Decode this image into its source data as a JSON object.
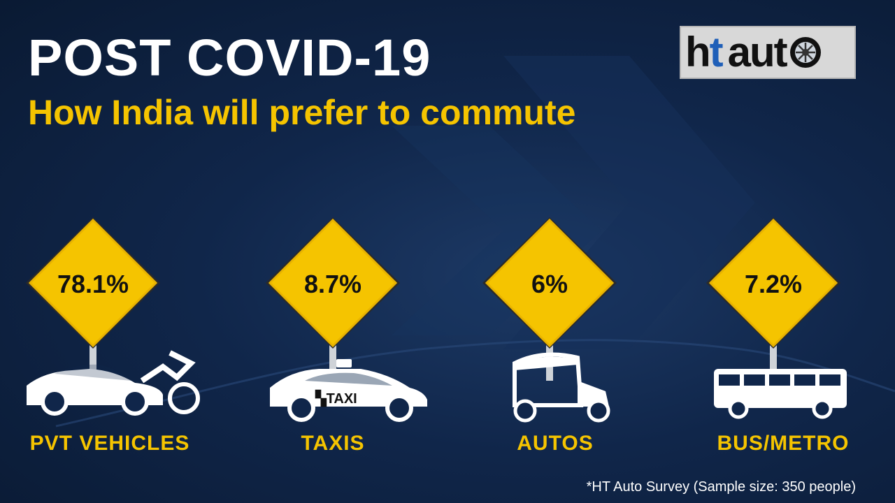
{
  "header": {
    "title": "POST COVID-19",
    "subtitle": "How India will prefer to commute"
  },
  "logo": {
    "ht": "ht",
    "auto": "auto",
    "icon": "wheel-icon"
  },
  "footnote": "*HT Auto Survey (Sample size: 350 people)",
  "chart_data": {
    "type": "bar",
    "title": "POST COVID-19",
    "subtitle": "How India will prefer to commute",
    "categories": [
      "PVT VEHICLES",
      "TAXIS",
      "AUTOS",
      "BUS/METRO"
    ],
    "values": [
      78.1,
      8.7,
      6,
      7.2
    ],
    "value_labels": [
      "78.1%",
      "8.7%",
      "6%",
      "7.2%"
    ],
    "unit": "%",
    "icons": [
      "car-motorcycle-icon",
      "taxi-icon",
      "auto-rickshaw-icon",
      "bus-icon"
    ],
    "taxi_sign_text": "TAXI",
    "colors": {
      "sign": "#f5c400",
      "label": "#f5c400",
      "vehicle": "#ffffff",
      "background": "#10264a"
    },
    "xlabel": "",
    "ylabel": "",
    "grid": false,
    "legend": "none"
  }
}
